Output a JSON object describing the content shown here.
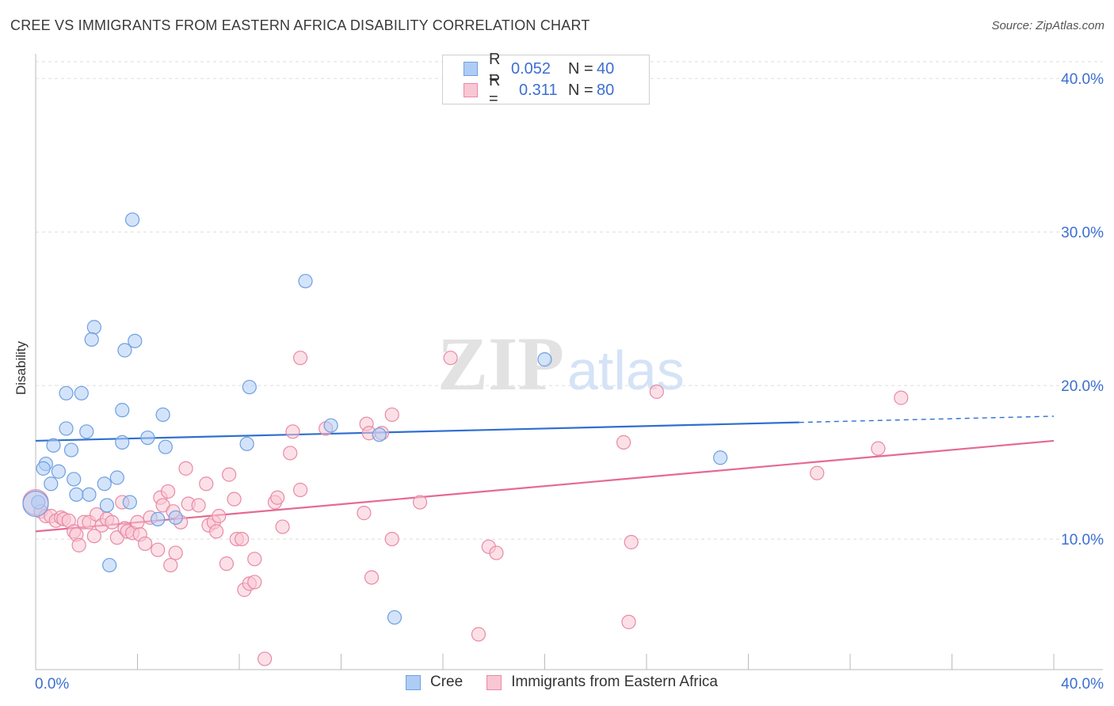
{
  "title": "CREE VS IMMIGRANTS FROM EASTERN AFRICA DISABILITY CORRELATION CHART",
  "source": "Source: ZipAtlas.com",
  "watermark": {
    "zip": "ZIP",
    "atlas": "atlas"
  },
  "legend_top": {
    "rows": [
      {
        "k": "R =",
        "r": "0.052",
        "n_label": "N =",
        "n": "40",
        "color": "#aecdf5",
        "border": "#6f9fe0"
      },
      {
        "k": "R =",
        "r": "0.311",
        "n_label": "N =",
        "n": "80",
        "color": "#f9c6d3",
        "border": "#e88aa5"
      }
    ]
  },
  "legend_bottom": [
    {
      "label": "Cree",
      "color": "#aecdf5",
      "border": "#6f9fe0"
    },
    {
      "label": "Immigrants from Eastern Africa",
      "color": "#f9c6d3",
      "border": "#e88aa5"
    }
  ],
  "chart_data": {
    "type": "scatter",
    "title": "CREE VS IMMIGRANTS FROM EASTERN AFRICA DISABILITY CORRELATION CHART",
    "xlabel": "",
    "ylabel": "Disability",
    "xlim": [
      0,
      40
    ],
    "ylim": [
      1.5,
      41.5
    ],
    "x_tick_labels": [
      "0.0%",
      "40.0%"
    ],
    "y_ticks": [
      10,
      20,
      30,
      40
    ],
    "y_tick_labels": [
      "10.0%",
      "20.0%",
      "30.0%",
      "40.0%"
    ],
    "grid": true,
    "legend": "top-center",
    "series": [
      {
        "name": "Cree",
        "color": "#6f9fe0",
        "fill": "#aecdf5",
        "trend": {
          "x": [
            0,
            30
          ],
          "y": [
            16.4,
            17.6
          ],
          "dashed_to": [
            40,
            18.0
          ],
          "color": "#2f6fd0"
        },
        "points": [
          [
            3.8,
            30.8
          ],
          [
            10.6,
            26.8
          ],
          [
            2.3,
            23.8
          ],
          [
            2.2,
            23.0
          ],
          [
            3.9,
            22.9
          ],
          [
            3.5,
            22.3
          ],
          [
            20.0,
            21.7
          ],
          [
            1.2,
            19.5
          ],
          [
            1.8,
            19.5
          ],
          [
            8.4,
            19.9
          ],
          [
            3.4,
            18.4
          ],
          [
            5.0,
            18.1
          ],
          [
            11.6,
            17.4
          ],
          [
            1.2,
            17.2
          ],
          [
            2.0,
            17.0
          ],
          [
            13.5,
            16.8
          ],
          [
            4.4,
            16.6
          ],
          [
            3.4,
            16.3
          ],
          [
            0.7,
            16.1
          ],
          [
            8.3,
            16.2
          ],
          [
            5.1,
            16.0
          ],
          [
            1.4,
            15.8
          ],
          [
            0.4,
            14.9
          ],
          [
            0.3,
            14.6
          ],
          [
            0.9,
            14.4
          ],
          [
            3.2,
            14.0
          ],
          [
            1.5,
            13.9
          ],
          [
            0.6,
            13.6
          ],
          [
            2.7,
            13.6
          ],
          [
            1.6,
            12.9
          ],
          [
            2.1,
            12.9
          ],
          [
            3.7,
            12.4
          ],
          [
            2.8,
            12.2
          ],
          [
            0.1,
            12.4
          ],
          [
            26.9,
            15.3
          ],
          [
            4.8,
            11.3
          ],
          [
            5.5,
            11.4
          ],
          [
            2.9,
            8.3
          ],
          [
            14.1,
            4.9
          ],
          [
            0.0,
            12.3
          ]
        ]
      },
      {
        "name": "Immigrants from Eastern Africa",
        "color": "#e88aa5",
        "fill": "#f9c6d3",
        "trend": {
          "x": [
            0,
            40
          ],
          "y": [
            10.5,
            16.4
          ],
          "color": "#e56a93"
        },
        "points": [
          [
            0.0,
            12.4
          ],
          [
            0.2,
            11.8
          ],
          [
            0.4,
            11.5
          ],
          [
            0.6,
            11.5
          ],
          [
            0.8,
            11.2
          ],
          [
            1.0,
            11.4
          ],
          [
            1.1,
            11.3
          ],
          [
            1.3,
            11.2
          ],
          [
            1.5,
            10.5
          ],
          [
            1.6,
            10.3
          ],
          [
            1.7,
            9.6
          ],
          [
            1.9,
            11.1
          ],
          [
            2.1,
            11.1
          ],
          [
            2.3,
            10.2
          ],
          [
            2.4,
            11.6
          ],
          [
            2.6,
            10.9
          ],
          [
            2.8,
            11.3
          ],
          [
            3.0,
            11.1
          ],
          [
            3.2,
            10.1
          ],
          [
            3.4,
            12.4
          ],
          [
            3.5,
            10.7
          ],
          [
            3.6,
            10.5
          ],
          [
            3.8,
            10.4
          ],
          [
            4.0,
            11.1
          ],
          [
            4.1,
            10.3
          ],
          [
            4.3,
            9.7
          ],
          [
            4.5,
            11.4
          ],
          [
            4.8,
            9.3
          ],
          [
            4.9,
            12.7
          ],
          [
            5.0,
            12.2
          ],
          [
            5.2,
            13.1
          ],
          [
            5.3,
            8.3
          ],
          [
            5.4,
            11.8
          ],
          [
            5.5,
            9.1
          ],
          [
            5.7,
            11.1
          ],
          [
            5.9,
            14.6
          ],
          [
            6.0,
            12.3
          ],
          [
            6.4,
            12.2
          ],
          [
            6.7,
            13.6
          ],
          [
            6.8,
            10.9
          ],
          [
            7.0,
            11.1
          ],
          [
            7.1,
            10.5
          ],
          [
            7.2,
            11.5
          ],
          [
            7.6,
            14.2
          ],
          [
            7.5,
            8.4
          ],
          [
            7.8,
            12.6
          ],
          [
            7.9,
            10.0
          ],
          [
            8.1,
            10.0
          ],
          [
            8.2,
            6.7
          ],
          [
            8.4,
            7.1
          ],
          [
            8.6,
            7.2
          ],
          [
            8.6,
            8.7
          ],
          [
            9.0,
            2.2
          ],
          [
            9.4,
            12.4
          ],
          [
            9.5,
            12.7
          ],
          [
            9.7,
            10.8
          ],
          [
            10.0,
            15.6
          ],
          [
            10.1,
            17.0
          ],
          [
            10.4,
            13.2
          ],
          [
            10.4,
            21.8
          ],
          [
            11.4,
            17.2
          ],
          [
            12.9,
            11.7
          ],
          [
            13.0,
            17.5
          ],
          [
            13.1,
            16.9
          ],
          [
            13.2,
            7.5
          ],
          [
            13.6,
            16.9
          ],
          [
            14.0,
            18.1
          ],
          [
            14.0,
            10.0
          ],
          [
            15.1,
            12.4
          ],
          [
            16.3,
            21.8
          ],
          [
            17.4,
            3.8
          ],
          [
            17.8,
            9.5
          ],
          [
            18.1,
            9.1
          ],
          [
            23.1,
            16.3
          ],
          [
            23.3,
            4.6
          ],
          [
            23.4,
            9.8
          ],
          [
            24.4,
            19.6
          ],
          [
            30.7,
            14.3
          ],
          [
            33.1,
            15.9
          ],
          [
            34.0,
            19.2
          ]
        ]
      }
    ]
  }
}
